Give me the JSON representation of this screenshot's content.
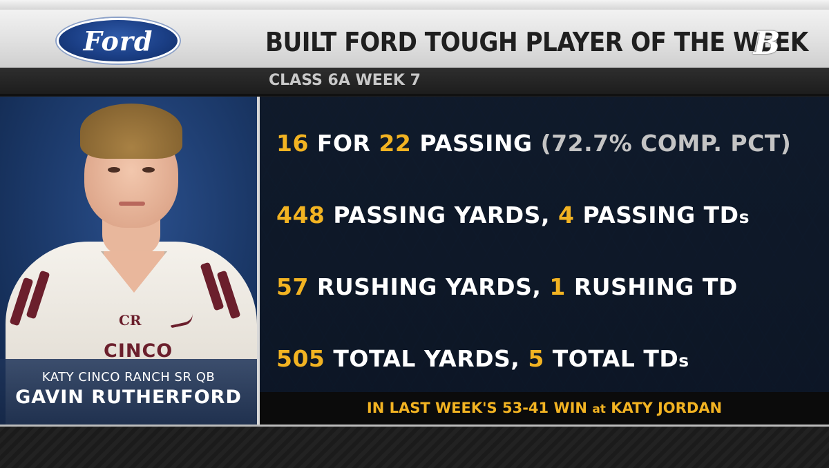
{
  "header": {
    "brand_logo_text": "Ford",
    "title": "BUILT FORD TOUGH PLAYER OF THE WEEK",
    "subtitle": "CLASS 6A WEEK 7",
    "network_mark": "B"
  },
  "player": {
    "jersey_text": "CINCO",
    "jersey_logo": "CR",
    "school_position": "KATY CINCO RANCH SR QB",
    "name": "GAVIN RUTHERFORD"
  },
  "stats": [
    {
      "parts": [
        {
          "t": "16",
          "c": "num"
        },
        {
          "t": " FOR ",
          "c": ""
        },
        {
          "t": "22",
          "c": "num"
        },
        {
          "t": " PASSING ",
          "c": ""
        },
        {
          "t": "(72.7% COMP. PCT)",
          "c": "dim"
        }
      ]
    },
    {
      "parts": [
        {
          "t": "448",
          "c": "num"
        },
        {
          "t": " PASSING YARDS, ",
          "c": ""
        },
        {
          "t": "4",
          "c": "num"
        },
        {
          "t": " PASSING TD",
          "c": ""
        },
        {
          "t": "s",
          "c": "small"
        }
      ]
    },
    {
      "parts": [
        {
          "t": "57",
          "c": "num"
        },
        {
          "t": " RUSHING YARDS, ",
          "c": ""
        },
        {
          "t": "1",
          "c": "num"
        },
        {
          "t": " RUSHING TD",
          "c": ""
        }
      ]
    },
    {
      "parts": [
        {
          "t": "505",
          "c": "num"
        },
        {
          "t": " TOTAL YARDS, ",
          "c": ""
        },
        {
          "t": "5",
          "c": "num"
        },
        {
          "t": " TOTAL TD",
          "c": ""
        },
        {
          "t": "s",
          "c": "small"
        }
      ]
    }
  ],
  "footer": {
    "pre": "IN LAST WEEK'S 53-41 WIN ",
    "mid": "at",
    "post": " KATY JORDAN"
  },
  "colors": {
    "accent": "#f2b322",
    "jersey_trim": "#6b1f2c",
    "panel_blue": "#1c3a6b"
  }
}
